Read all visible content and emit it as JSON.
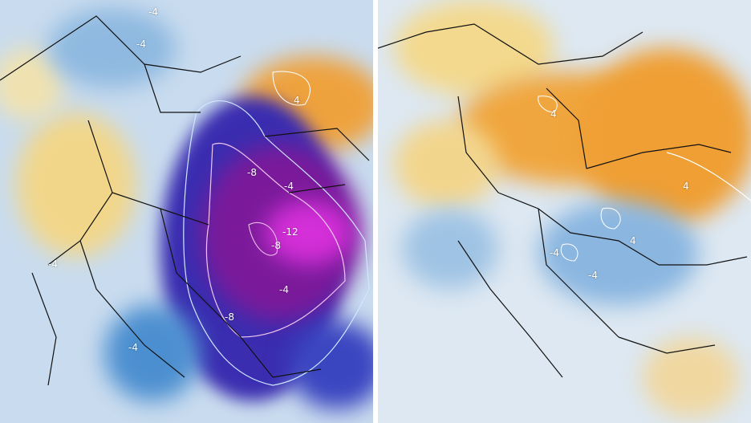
{
  "colors": {
    "warm_light": "#f3d890",
    "warm": "#f2a640",
    "cold_light": "#a9cbe8",
    "cold": "#3f7fc4",
    "very_cold": "#2a1fa0",
    "purple": "#7a1a9a",
    "magenta": "#d22fd6"
  },
  "left_panel": {
    "contour_labels": [
      "-4",
      "-4",
      "4",
      "-8",
      "-4",
      "-12",
      "-8",
      "-4",
      "-4",
      "-8",
      "-4"
    ]
  },
  "right_panel": {
    "contour_labels": [
      "4",
      "4",
      "-4",
      "-4",
      "4"
    ]
  }
}
